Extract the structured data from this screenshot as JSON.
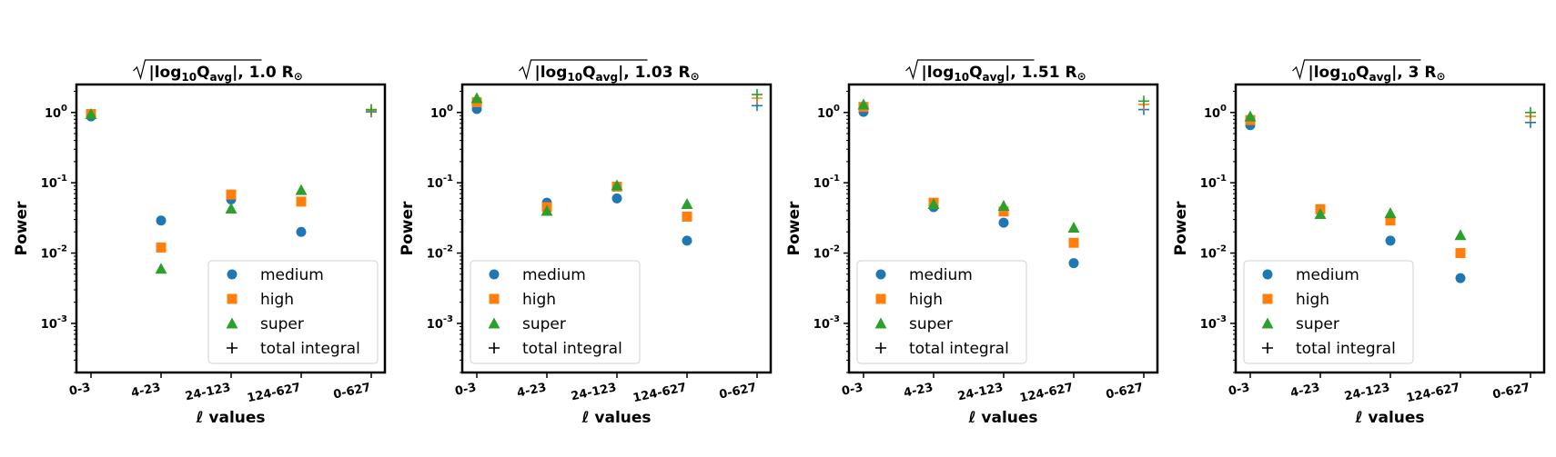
{
  "chart_data": [
    {
      "type": "scatter",
      "title": "√|log₁₀Q_avg|, 1.0 R☉",
      "title_value": "1.0",
      "xlabel": "ℓ values",
      "ylabel": "Power",
      "yscale": "log",
      "ylim": [
        0.0002,
        2.5
      ],
      "ytick_labels": [
        "10^0",
        "10^-1",
        "10^-2",
        "10^-3"
      ],
      "categories": [
        "0-3",
        "4-23",
        "24-123",
        "124-627",
        "0-627"
      ],
      "series": [
        {
          "name": "medium",
          "marker": "circle",
          "color": "#1f77b4",
          "points": [
            [
              0,
              0.88
            ],
            [
              1,
              0.029
            ],
            [
              2,
              0.058
            ],
            [
              3,
              0.02
            ]
          ]
        },
        {
          "name": "high",
          "marker": "square",
          "color": "#ff7f0e",
          "points": [
            [
              0,
              0.95
            ],
            [
              1,
              0.012
            ],
            [
              2,
              0.068
            ],
            [
              3,
              0.054
            ]
          ]
        },
        {
          "name": "super",
          "marker": "triangle",
          "color": "#2ca02c",
          "points": [
            [
              0,
              0.95
            ],
            [
              1,
              0.006
            ],
            [
              2,
              0.043
            ],
            [
              3,
              0.079
            ]
          ]
        },
        {
          "name": "total integral",
          "marker": "plus",
          "color": "#000000",
          "points": [
            [
              4,
              1.02
            ],
            [
              4,
              1.07
            ],
            [
              4,
              1.1
            ]
          ],
          "point_colors": [
            "#1f77b4",
            "#ff7f0e",
            "#2ca02c"
          ]
        }
      ],
      "legend": "lower-right"
    },
    {
      "type": "scatter",
      "title": "√|log₁₀Q_avg|, 1.03 R☉",
      "title_value": "1.03",
      "xlabel": "ℓ values",
      "ylabel": "Power",
      "yscale": "log",
      "ylim": [
        0.0002,
        2.5
      ],
      "ytick_labels": [
        "10^0",
        "10^-1",
        "10^-2",
        "10^-3"
      ],
      "categories": [
        "0-3",
        "4-23",
        "24-123",
        "124-627",
        "0-627"
      ],
      "series": [
        {
          "name": "medium",
          "marker": "circle",
          "color": "#1f77b4",
          "points": [
            [
              0,
              1.12
            ],
            [
              1,
              0.052
            ],
            [
              2,
              0.06
            ],
            [
              3,
              0.015
            ]
          ]
        },
        {
          "name": "high",
          "marker": "square",
          "color": "#ff7f0e",
          "points": [
            [
              0,
              1.4
            ],
            [
              1,
              0.045
            ],
            [
              2,
              0.088
            ],
            [
              3,
              0.033
            ]
          ]
        },
        {
          "name": "super",
          "marker": "triangle",
          "color": "#2ca02c",
          "points": [
            [
              0,
              1.6
            ],
            [
              1,
              0.04
            ],
            [
              2,
              0.092
            ],
            [
              3,
              0.05
            ]
          ]
        },
        {
          "name": "total integral",
          "marker": "plus",
          "color": "#000000",
          "points": [
            [
              4,
              1.25
            ],
            [
              4,
              1.6
            ],
            [
              4,
              1.8
            ]
          ],
          "point_colors": [
            "#1f77b4",
            "#ff7f0e",
            "#2ca02c"
          ]
        }
      ],
      "legend": "lower-left"
    },
    {
      "type": "scatter",
      "title": "√|log₁₀Q_avg|, 1.51 R☉",
      "title_value": "1.51",
      "xlabel": "ℓ values",
      "ylabel": "Power",
      "yscale": "log",
      "ylim": [
        0.0002,
        2.5
      ],
      "ytick_labels": [
        "10^0",
        "10^-1",
        "10^-2",
        "10^-3"
      ],
      "categories": [
        "0-3",
        "4-23",
        "24-123",
        "124-627",
        "0-627"
      ],
      "series": [
        {
          "name": "medium",
          "marker": "circle",
          "color": "#1f77b4",
          "points": [
            [
              0,
              1.02
            ],
            [
              1,
              0.045
            ],
            [
              2,
              0.027
            ],
            [
              3,
              0.0072
            ]
          ]
        },
        {
          "name": "high",
          "marker": "square",
          "color": "#ff7f0e",
          "points": [
            [
              0,
              1.2
            ],
            [
              1,
              0.052
            ],
            [
              2,
              0.039
            ],
            [
              3,
              0.014
            ]
          ]
        },
        {
          "name": "super",
          "marker": "triangle",
          "color": "#2ca02c",
          "points": [
            [
              0,
              1.3
            ],
            [
              1,
              0.05
            ],
            [
              2,
              0.047
            ],
            [
              3,
              0.023
            ]
          ]
        },
        {
          "name": "total integral",
          "marker": "plus",
          "color": "#000000",
          "points": [
            [
              4,
              1.1
            ],
            [
              4,
              1.3
            ],
            [
              4,
              1.45
            ]
          ],
          "point_colors": [
            "#1f77b4",
            "#ff7f0e",
            "#2ca02c"
          ]
        }
      ],
      "legend": "lower-left"
    },
    {
      "type": "scatter",
      "title": "√|log₁₀Q_avg|, 3 R☉",
      "title_value": "3",
      "xlabel": "ℓ values",
      "ylabel": "Power",
      "yscale": "log",
      "ylim": [
        0.0002,
        2.5
      ],
      "ytick_labels": [
        "10^0",
        "10^-1",
        "10^-2",
        "10^-3"
      ],
      "categories": [
        "0-3",
        "4-23",
        "24-123",
        "124-627",
        "0-627"
      ],
      "series": [
        {
          "name": "medium",
          "marker": "circle",
          "color": "#1f77b4",
          "points": [
            [
              0,
              0.66
            ],
            [
              1,
              0.04
            ],
            [
              2,
              0.015
            ],
            [
              3,
              0.0044
            ]
          ]
        },
        {
          "name": "high",
          "marker": "square",
          "color": "#ff7f0e",
          "points": [
            [
              0,
              0.78
            ],
            [
              1,
              0.042
            ],
            [
              2,
              0.029
            ],
            [
              3,
              0.01
            ]
          ]
        },
        {
          "name": "super",
          "marker": "triangle",
          "color": "#2ca02c",
          "points": [
            [
              0,
              0.88
            ],
            [
              1,
              0.036
            ],
            [
              2,
              0.037
            ],
            [
              3,
              0.018
            ]
          ]
        },
        {
          "name": "total integral",
          "marker": "plus",
          "color": "#000000",
          "points": [
            [
              4,
              0.72
            ],
            [
              4,
              0.88
            ],
            [
              4,
              1.0
            ]
          ],
          "point_colors": [
            "#1f77b4",
            "#ff7f0e",
            "#2ca02c"
          ]
        }
      ],
      "legend": "lower-left"
    }
  ]
}
